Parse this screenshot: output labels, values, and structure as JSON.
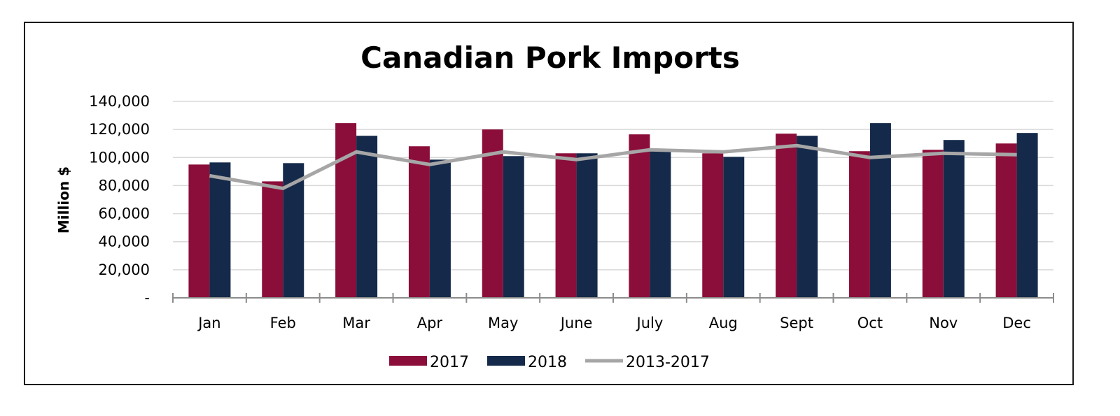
{
  "chart_data": {
    "type": "bar",
    "title": "Canadian Pork Imports",
    "xlabel": "",
    "ylabel": "Million $",
    "ylim": [
      0,
      140000
    ],
    "yticks": [
      0,
      20000,
      40000,
      60000,
      80000,
      100000,
      120000,
      140000
    ],
    "ytick_labels": [
      "-",
      "20,000",
      "40,000",
      "60,000",
      "80,000",
      "100,000",
      "120,000",
      "140,000"
    ],
    "grid": true,
    "legend_position": "bottom",
    "categories": [
      "Jan",
      "Feb",
      "Mar",
      "Apr",
      "May",
      "June",
      "July",
      "Aug",
      "Sept",
      "Oct",
      "Nov",
      "Dec"
    ],
    "series": [
      {
        "name": "2017",
        "type": "bar",
        "color": "#8b0e3a",
        "values": [
          95000,
          83000,
          124500,
          108000,
          120000,
          103000,
          116500,
          103000,
          117000,
          104500,
          105500,
          110000
        ]
      },
      {
        "name": "2018",
        "type": "bar",
        "color": "#152a4a",
        "values": [
          96500,
          96000,
          115500,
          98500,
          101000,
          103000,
          106000,
          100500,
          115500,
          124500,
          112500,
          117500
        ]
      },
      {
        "name": "2013-2017",
        "type": "line",
        "color": "#a6a6a6",
        "values": [
          87000,
          78000,
          104000,
          95000,
          104000,
          98500,
          105500,
          104000,
          108500,
          100000,
          103000,
          102000
        ]
      }
    ]
  }
}
